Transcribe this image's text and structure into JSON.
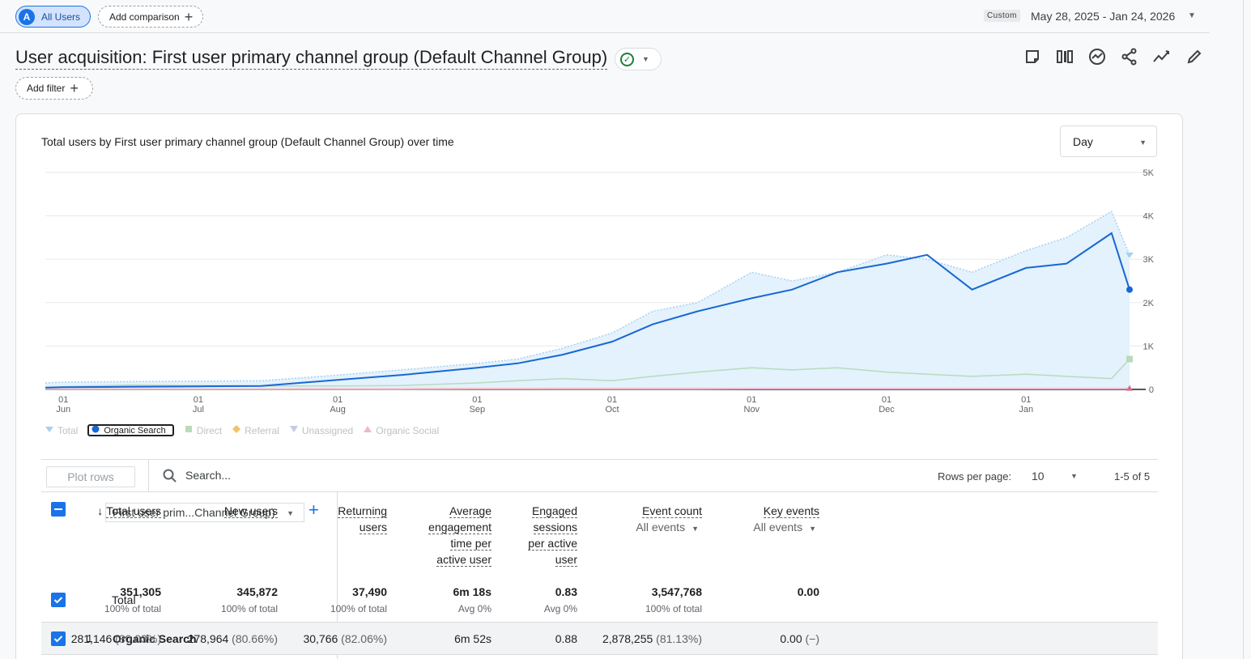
{
  "top_bar": {
    "segment_chip": {
      "avatar": "A",
      "label": "All Users"
    },
    "comparison_chip": {
      "label": "Add comparison"
    },
    "date_badge": "Custom",
    "date_range": "May 28, 2025 - Jan 24, 2026"
  },
  "page": {
    "title": "User acquisition: First user primary channel group (Default Channel Group)",
    "add_filter_label": "Add filter",
    "toolbar_icons": [
      "customize-report-icon",
      "compare-icon",
      "insights-icon",
      "share-icon",
      "trend-icon",
      "edit-icon"
    ]
  },
  "chart": {
    "title": "Total users by First user primary channel group (Default Channel Group) over time",
    "granularity": "Day",
    "x_ticks": [
      {
        "day": "01",
        "month": "Jun"
      },
      {
        "day": "01",
        "month": "Jul"
      },
      {
        "day": "01",
        "month": "Aug"
      },
      {
        "day": "01",
        "month": "Sep"
      },
      {
        "day": "01",
        "month": "Oct"
      },
      {
        "day": "01",
        "month": "Nov"
      },
      {
        "day": "01",
        "month": "Dec"
      },
      {
        "day": "01",
        "month": "Jan"
      }
    ],
    "y_ticks": [
      "5K",
      "4K",
      "3K",
      "2K",
      "1K",
      "0"
    ],
    "legend": [
      {
        "label": "Total",
        "active": false
      },
      {
        "label": "Organic Search",
        "active": true
      },
      {
        "label": "Direct",
        "active": false
      },
      {
        "label": "Referral",
        "active": false
      },
      {
        "label": "Unassigned",
        "active": false
      },
      {
        "label": "Organic Social",
        "active": false
      }
    ],
    "colors": {
      "organic_search": "#1967d2",
      "total": "#a8d1f0",
      "direct": "#b7dbbc",
      "referral": "#f6c16b",
      "unassigned": "#c5cae9",
      "organic_social": "#f4b6c8"
    }
  },
  "chart_data": {
    "type": "line",
    "ylim": [
      0,
      5000
    ],
    "x": [
      "2025-05-28",
      "2025-06-01",
      "2025-06-15",
      "2025-07-01",
      "2025-07-15",
      "2025-08-01",
      "2025-08-15",
      "2025-09-01",
      "2025-09-10",
      "2025-09-20",
      "2025-10-01",
      "2025-10-10",
      "2025-10-20",
      "2025-11-01",
      "2025-11-10",
      "2025-11-20",
      "2025-12-01",
      "2025-12-10",
      "2025-12-20",
      "2026-01-01",
      "2026-01-10",
      "2026-01-20",
      "2026-01-24"
    ],
    "series": [
      {
        "name": "Total",
        "values": [
          150,
          170,
          180,
          190,
          200,
          330,
          450,
          600,
          700,
          950,
          1300,
          1800,
          2000,
          2700,
          2500,
          2700,
          3100,
          3000,
          2700,
          3200,
          3500,
          4100,
          3100
        ]
      },
      {
        "name": "Organic Search",
        "values": [
          40,
          50,
          60,
          70,
          80,
          220,
          330,
          500,
          600,
          800,
          1100,
          1500,
          1800,
          2100,
          2300,
          2700,
          2900,
          3100,
          2300,
          2800,
          2900,
          3600,
          2300
        ]
      },
      {
        "name": "Direct",
        "values": [
          50,
          60,
          100,
          90,
          80,
          80,
          90,
          150,
          200,
          250,
          200,
          300,
          400,
          500,
          450,
          500,
          400,
          350,
          300,
          350,
          300,
          250,
          700
        ]
      },
      {
        "name": "Referral",
        "values": [
          5,
          5,
          5,
          5,
          5,
          10,
          10,
          15,
          15,
          20,
          20,
          20,
          20,
          25,
          25,
          25,
          25,
          25,
          20,
          25,
          25,
          25,
          25
        ]
      },
      {
        "name": "Unassigned",
        "values": [
          5,
          5,
          5,
          5,
          5,
          5,
          5,
          10,
          10,
          10,
          10,
          10,
          10,
          15,
          15,
          15,
          15,
          15,
          15,
          15,
          15,
          15,
          15
        ]
      },
      {
        "name": "Organic Social",
        "values": [
          10,
          10,
          10,
          10,
          10,
          15,
          15,
          20,
          20,
          20,
          20,
          25,
          25,
          25,
          25,
          25,
          25,
          25,
          25,
          25,
          25,
          25,
          25
        ]
      }
    ]
  },
  "table": {
    "plot_rows_label": "Plot rows",
    "search_placeholder": "Search...",
    "rows_per_page_label": "Rows per page:",
    "rows_per_page": "10",
    "pagination": "1-5 of 5",
    "dimension_select": "First user prim...Channel Group)",
    "columns": [
      {
        "lines": [
          "Total users"
        ],
        "sorted": true
      },
      {
        "lines": [
          "New users"
        ]
      },
      {
        "lines": [
          "Returning",
          "users"
        ]
      },
      {
        "lines": [
          "Average",
          "engagement",
          "time per",
          "active user"
        ]
      },
      {
        "lines": [
          "Engaged",
          "sessions",
          "per active",
          "user"
        ]
      },
      {
        "lines": [
          "Event count"
        ],
        "sub": "All events"
      },
      {
        "lines": [
          "Key events"
        ],
        "sub": "All events"
      }
    ],
    "total": {
      "label": "Total",
      "values": [
        "351,305",
        "345,872",
        "37,490",
        "6m 18s",
        "0.83",
        "3,547,768",
        "0.00"
      ],
      "subs": [
        "100% of total",
        "100% of total",
        "100% of total",
        "Avg 0%",
        "Avg 0%",
        "100% of total",
        ""
      ]
    },
    "rows": [
      {
        "index": "1",
        "name": "Organic Search",
        "values": [
          {
            "v": "281,146",
            "p": "(80.03%)"
          },
          {
            "v": "278,964",
            "p": "(80.66%)"
          },
          {
            "v": "30,766",
            "p": "(82.06%)"
          },
          {
            "v": "6m 52s",
            "p": ""
          },
          {
            "v": "0.88",
            "p": ""
          },
          {
            "v": "2,878,255",
            "p": "(81.13%)"
          },
          {
            "v": "0.00",
            "p": "(−)"
          }
        ]
      }
    ]
  }
}
